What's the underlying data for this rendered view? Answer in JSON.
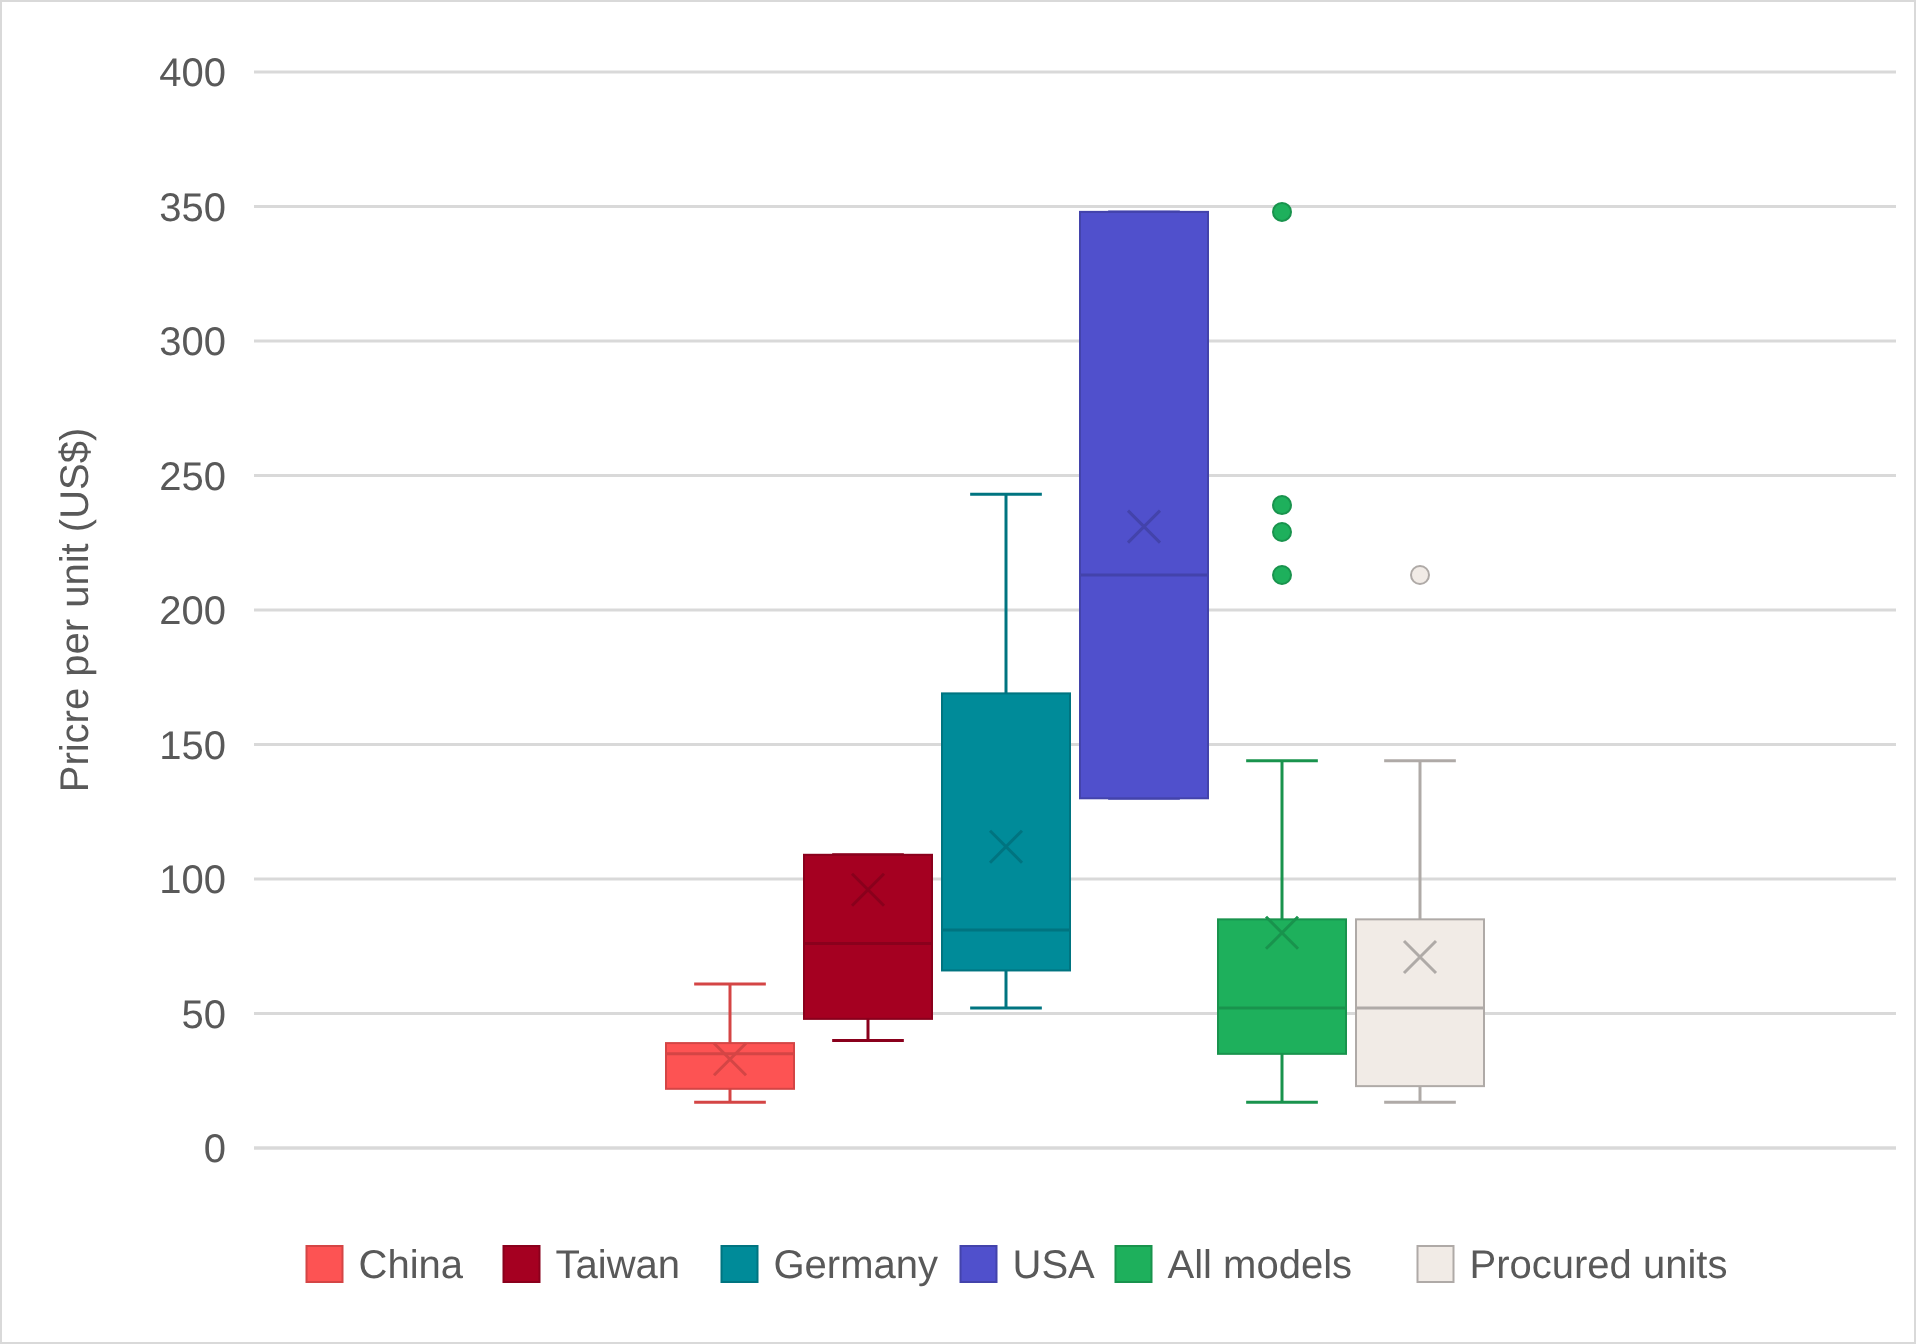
{
  "chart_data": {
    "type": "box",
    "ylabel": "Pricre per unit (US$)",
    "categories": [
      null
    ],
    "ylim": [
      0,
      400
    ],
    "yticks": [
      0,
      50,
      100,
      150,
      200,
      250,
      300,
      350,
      400
    ],
    "grid": "y",
    "legend": "bottom",
    "series": [
      {
        "name": "China",
        "color": "#fd5353",
        "boxes": [
          {
            "low": 17,
            "q1": 22,
            "median": 35,
            "q3": 39,
            "high": 61,
            "mean": 33
          }
        ]
      },
      {
        "name": "Taiwan",
        "color": "#a50021",
        "boxes": [
          {
            "low": 40,
            "q1": 48,
            "median": 76,
            "q3": 109,
            "high": 109,
            "mean": 96
          }
        ]
      },
      {
        "name": "Germany",
        "color": "#008b99",
        "boxes": [
          {
            "low": 52,
            "q1": 66,
            "median": 81,
            "q3": 169,
            "high": 243,
            "mean": 112
          }
        ]
      },
      {
        "name": "USA",
        "color": "#5050cc",
        "boxes": [
          {
            "low": 130,
            "q1": 130,
            "median": 213,
            "q3": 348,
            "high": 348,
            "mean": 231
          }
        ]
      },
      {
        "name": "All models",
        "color": "#1eb05c",
        "boxes": [
          {
            "low": 17,
            "q1": 35,
            "median": 52,
            "q3": 85,
            "high": 144,
            "mean": 80,
            "outliers": [
              348,
              239,
              229,
              213
            ]
          }
        ]
      },
      {
        "name": "Procured units",
        "color": "#f1ebe6",
        "boxes": [
          {
            "low": 17,
            "q1": 23,
            "median": 52,
            "q3": 85,
            "high": 144,
            "mean": 71,
            "outliers": [
              213
            ]
          }
        ]
      }
    ]
  }
}
